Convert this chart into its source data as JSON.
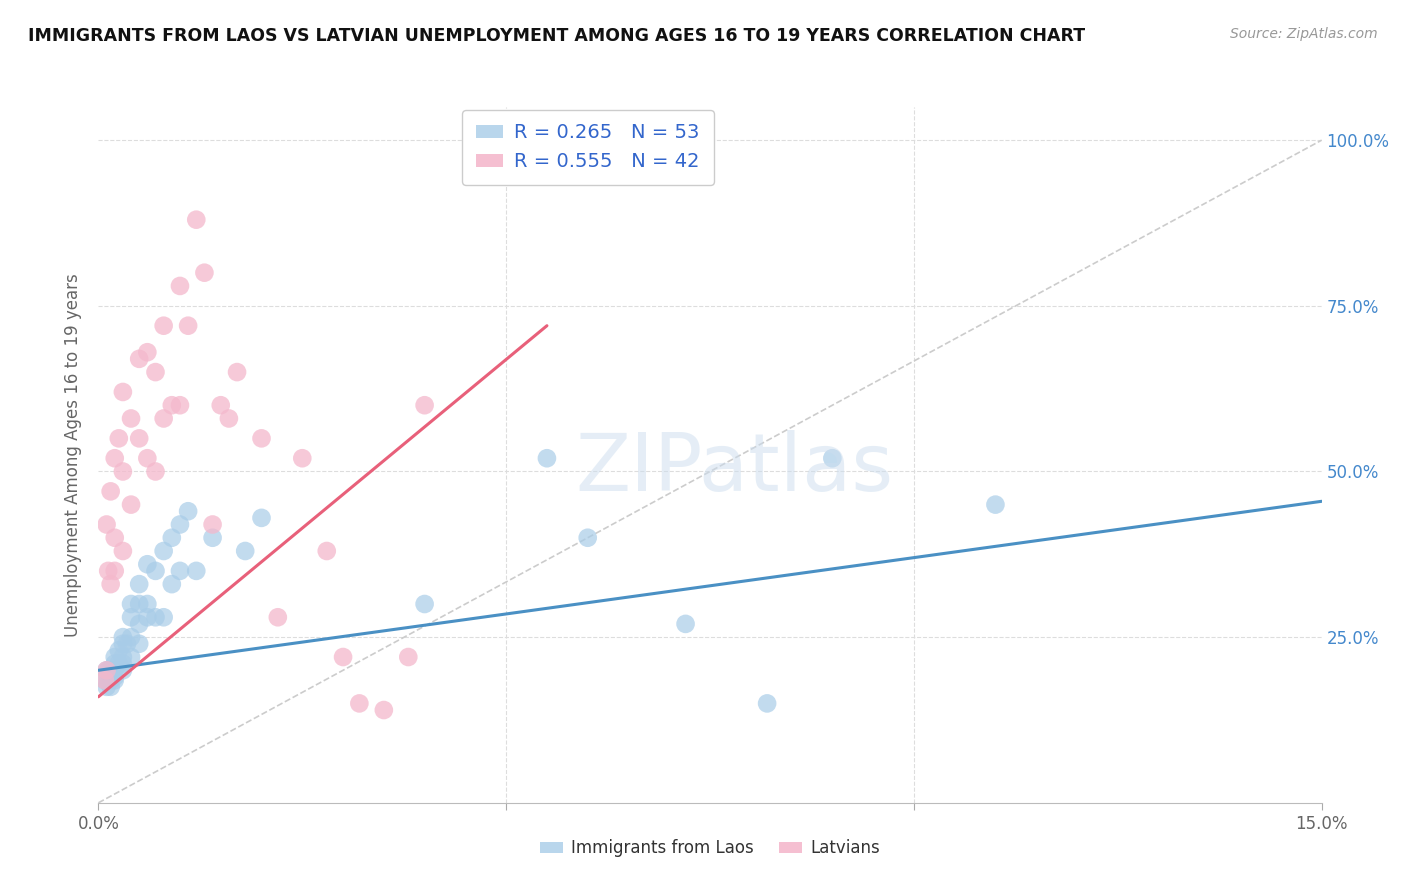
{
  "title": "IMMIGRANTS FROM LAOS VS LATVIAN UNEMPLOYMENT AMONG AGES 16 TO 19 YEARS CORRELATION CHART",
  "source": "Source: ZipAtlas.com",
  "ylabel": "Unemployment Among Ages 16 to 19 years",
  "xlim": [
    0.0,
    0.15
  ],
  "ylim": [
    0.0,
    1.05
  ],
  "blue_R": 0.265,
  "blue_N": 53,
  "pink_R": 0.555,
  "pink_N": 42,
  "blue_color": "#a8cce8",
  "pink_color": "#f4b8cc",
  "blue_line_color": "#4a90c4",
  "pink_line_color": "#e8607a",
  "diag_line_color": "#cccccc",
  "background_color": "#ffffff",
  "grid_color": "#dddddd",
  "watermark": "ZIPatlas",
  "legend_text_color": "#3366cc",
  "blue_points_x": [
    0.0008,
    0.001,
    0.001,
    0.0012,
    0.0012,
    0.0015,
    0.0015,
    0.0015,
    0.0015,
    0.002,
    0.002,
    0.002,
    0.002,
    0.002,
    0.0025,
    0.0025,
    0.003,
    0.003,
    0.003,
    0.003,
    0.003,
    0.0035,
    0.004,
    0.004,
    0.004,
    0.004,
    0.005,
    0.005,
    0.005,
    0.005,
    0.006,
    0.006,
    0.006,
    0.007,
    0.007,
    0.008,
    0.008,
    0.009,
    0.009,
    0.01,
    0.01,
    0.011,
    0.012,
    0.014,
    0.018,
    0.02,
    0.04,
    0.055,
    0.06,
    0.072,
    0.082,
    0.09,
    0.11
  ],
  "blue_points_y": [
    0.185,
    0.2,
    0.175,
    0.2,
    0.185,
    0.195,
    0.2,
    0.185,
    0.175,
    0.22,
    0.21,
    0.2,
    0.19,
    0.185,
    0.23,
    0.21,
    0.25,
    0.24,
    0.22,
    0.21,
    0.2,
    0.24,
    0.3,
    0.28,
    0.25,
    0.22,
    0.33,
    0.3,
    0.27,
    0.24,
    0.36,
    0.3,
    0.28,
    0.35,
    0.28,
    0.38,
    0.28,
    0.4,
    0.33,
    0.42,
    0.35,
    0.44,
    0.35,
    0.4,
    0.38,
    0.43,
    0.3,
    0.52,
    0.4,
    0.27,
    0.15,
    0.52,
    0.45
  ],
  "pink_points_x": [
    0.0008,
    0.001,
    0.001,
    0.0012,
    0.0015,
    0.0015,
    0.002,
    0.002,
    0.002,
    0.0025,
    0.003,
    0.003,
    0.003,
    0.004,
    0.004,
    0.005,
    0.005,
    0.006,
    0.006,
    0.007,
    0.007,
    0.008,
    0.008,
    0.009,
    0.01,
    0.01,
    0.011,
    0.012,
    0.013,
    0.014,
    0.015,
    0.016,
    0.017,
    0.02,
    0.022,
    0.025,
    0.028,
    0.03,
    0.032,
    0.035,
    0.038,
    0.04
  ],
  "pink_points_y": [
    0.185,
    0.2,
    0.42,
    0.35,
    0.47,
    0.33,
    0.52,
    0.4,
    0.35,
    0.55,
    0.62,
    0.5,
    0.38,
    0.58,
    0.45,
    0.67,
    0.55,
    0.68,
    0.52,
    0.65,
    0.5,
    0.72,
    0.58,
    0.6,
    0.78,
    0.6,
    0.72,
    0.88,
    0.8,
    0.42,
    0.6,
    0.58,
    0.65,
    0.55,
    0.28,
    0.52,
    0.38,
    0.22,
    0.15,
    0.14,
    0.22,
    0.6
  ],
  "blue_line_x": [
    0.0,
    0.15
  ],
  "blue_line_y": [
    0.2,
    0.455
  ],
  "pink_line_x": [
    0.0,
    0.055
  ],
  "pink_line_y": [
    0.16,
    0.72
  ],
  "diag_line_x": [
    0.0,
    0.15
  ],
  "diag_line_y": [
    0.0,
    1.0
  ],
  "yticks": [
    0.0,
    0.25,
    0.5,
    0.75,
    1.0
  ],
  "ytick_labels_right": [
    "",
    "25.0%",
    "50.0%",
    "75.0%",
    "100.0%"
  ],
  "xticks": [
    0.0,
    0.05,
    0.1,
    0.15
  ],
  "xtick_labels": [
    "0.0%",
    "",
    "",
    "15.0%"
  ]
}
